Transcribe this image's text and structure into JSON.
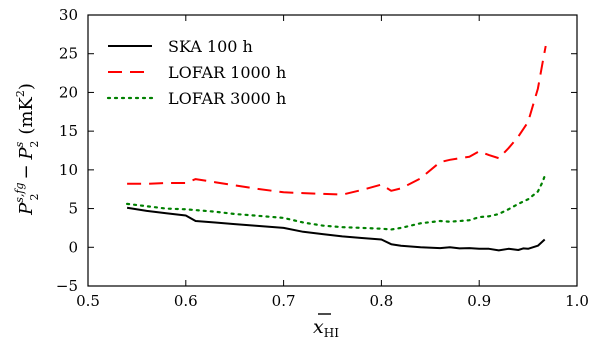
{
  "chart_data": {
    "type": "line",
    "xlabel_base": "x",
    "xlabel_sub": "HI",
    "ylabel": {
      "p_main": "P",
      "p_sup": "s,fg",
      "p_sub": "2",
      "minus": "−",
      "p2_main": "P",
      "p2_sup": "s",
      "p2_sub": "2",
      "unit_open": "(mK",
      "unit_sup": "2",
      "unit_close": ")"
    },
    "xlim": [
      0.5,
      1.0
    ],
    "ylim": [
      -5,
      30
    ],
    "xticks": [
      0.5,
      0.6,
      0.7,
      0.8,
      0.9,
      1.0
    ],
    "xtick_labels": [
      "0.5",
      "0.6",
      "0.7",
      "0.8",
      "0.9",
      "1.0"
    ],
    "yticks": [
      -5,
      0,
      5,
      10,
      15,
      20,
      25,
      30
    ],
    "ytick_labels": [
      "−5",
      "0",
      "5",
      "10",
      "15",
      "20",
      "25",
      "30"
    ],
    "legend_position": "upper-left",
    "series": [
      {
        "name": "SKA 100 h",
        "color": "#000000",
        "style": "solid",
        "x": [
          0.54,
          0.56,
          0.58,
          0.6,
          0.61,
          0.63,
          0.65,
          0.67,
          0.7,
          0.72,
          0.74,
          0.76,
          0.78,
          0.8,
          0.81,
          0.82,
          0.84,
          0.86,
          0.87,
          0.88,
          0.89,
          0.9,
          0.91,
          0.92,
          0.93,
          0.94,
          0.945,
          0.95,
          0.96,
          0.967
        ],
        "y": [
          5.1,
          4.7,
          4.4,
          4.1,
          3.4,
          3.2,
          3.0,
          2.8,
          2.5,
          2.0,
          1.7,
          1.4,
          1.2,
          1.0,
          0.4,
          0.2,
          0.0,
          -0.1,
          0.0,
          -0.15,
          -0.1,
          -0.2,
          -0.2,
          -0.4,
          -0.2,
          -0.35,
          -0.15,
          -0.2,
          0.2,
          1.0
        ]
      },
      {
        "name": "LOFAR 1000 h",
        "color": "#ff0000",
        "style": "dashed",
        "x": [
          0.54,
          0.56,
          0.58,
          0.6,
          0.61,
          0.63,
          0.65,
          0.67,
          0.7,
          0.72,
          0.74,
          0.76,
          0.78,
          0.8,
          0.81,
          0.82,
          0.84,
          0.86,
          0.87,
          0.88,
          0.89,
          0.9,
          0.91,
          0.92,
          0.93,
          0.94,
          0.95,
          0.96,
          0.965,
          0.968
        ],
        "y": [
          8.2,
          8.2,
          8.3,
          8.3,
          8.8,
          8.4,
          8.0,
          7.6,
          7.1,
          7.0,
          6.9,
          6.8,
          7.4,
          8.1,
          7.3,
          7.6,
          8.9,
          11.0,
          11.3,
          11.5,
          11.7,
          12.4,
          11.9,
          11.5,
          12.8,
          14.3,
          16.2,
          20.5,
          24.0,
          26.0
        ]
      },
      {
        "name": "LOFAR 3000 h",
        "color": "#008000",
        "style": "dotted",
        "x": [
          0.54,
          0.56,
          0.58,
          0.6,
          0.61,
          0.63,
          0.65,
          0.67,
          0.7,
          0.72,
          0.74,
          0.76,
          0.78,
          0.8,
          0.81,
          0.82,
          0.84,
          0.86,
          0.87,
          0.88,
          0.89,
          0.9,
          0.91,
          0.92,
          0.93,
          0.94,
          0.95,
          0.96,
          0.965,
          0.968
        ],
        "y": [
          5.6,
          5.3,
          5.0,
          4.9,
          4.8,
          4.6,
          4.3,
          4.1,
          3.8,
          3.2,
          2.8,
          2.6,
          2.5,
          2.4,
          2.3,
          2.5,
          3.1,
          3.4,
          3.3,
          3.4,
          3.5,
          3.9,
          4.0,
          4.3,
          4.9,
          5.6,
          6.2,
          7.2,
          8.5,
          9.6
        ]
      }
    ]
  }
}
